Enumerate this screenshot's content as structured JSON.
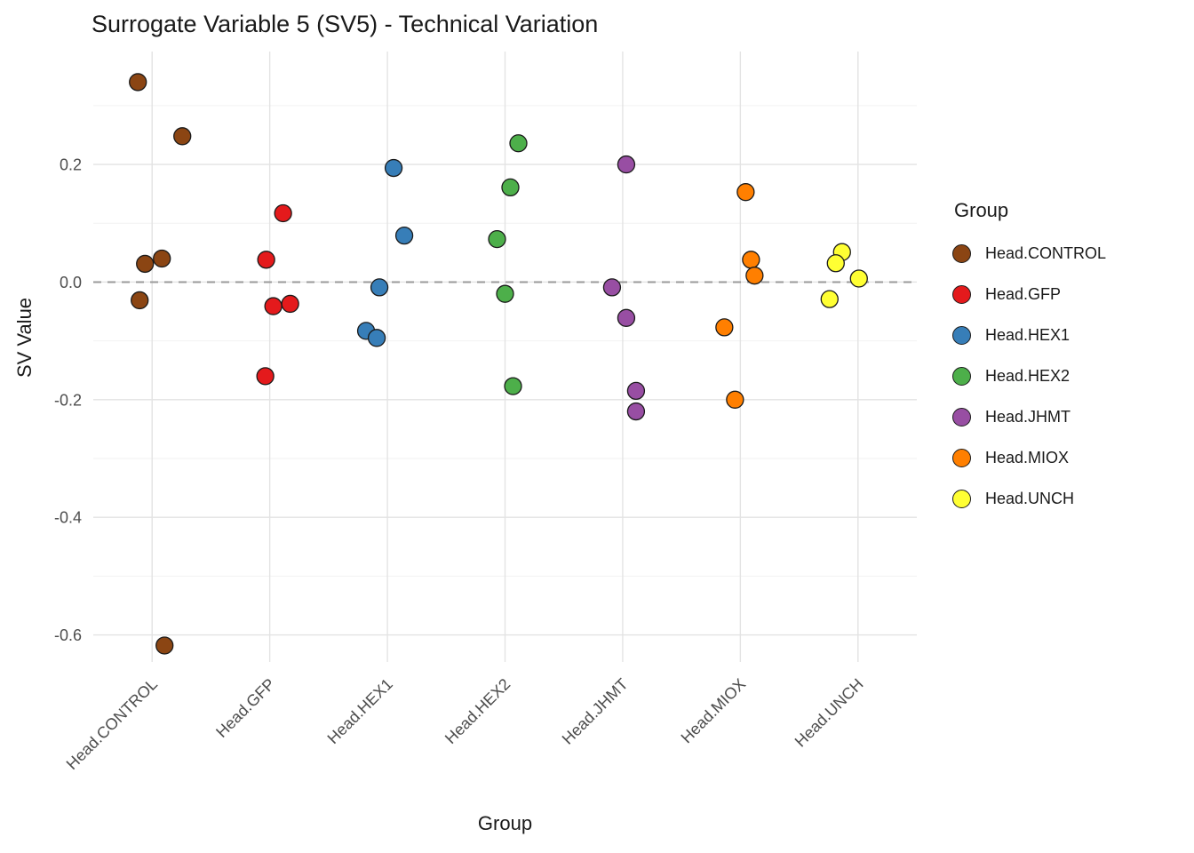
{
  "title": "Surrogate Variable 5 (SV5) - Technical Variation",
  "x_axis_title": "Group",
  "y_axis_title": "SV Value",
  "legend": {
    "title": "Group"
  },
  "chart_data": {
    "type": "scatter",
    "title": "Surrogate Variable 5 (SV5) - Technical Variation",
    "xlabel": "Group",
    "ylabel": "SV Value",
    "grid": true,
    "legend_position": "right",
    "reference_line_y": 0.0,
    "reference_line_style": "dashed",
    "reference_line_color": "#9a9a9a",
    "ylim": [
      -0.646,
      0.392
    ],
    "y_ticks": [
      {
        "v": 0.2,
        "label": "0.2"
      },
      {
        "v": 0.0,
        "label": "0.0"
      },
      {
        "v": -0.2,
        "label": "-0.2"
      },
      {
        "v": -0.4,
        "label": "-0.4"
      },
      {
        "v": -0.6,
        "label": "-0.6"
      }
    ],
    "y_minor_ticks": [
      0.3,
      0.1,
      -0.1,
      -0.3,
      -0.5
    ],
    "categories": [
      "Head.CONTROL",
      "Head.GFP",
      "Head.HEX1",
      "Head.HEX2",
      "Head.JHMT",
      "Head.MIOX",
      "Head.UNCH"
    ],
    "point_radius": 9.5,
    "point_edge_color": "#1a1a1a",
    "grid_major_color": "#e3e3e3",
    "grid_minor_color": "#f2f2f2",
    "axis_text_color": "#4d4d4d",
    "series": [
      {
        "name": "Head.CONTROL",
        "color": "#8B4513",
        "points": [
          {
            "dx": -16,
            "y": 0.34
          },
          {
            "dx": 34,
            "y": 0.248
          },
          {
            "dx": 11,
            "y": 0.04
          },
          {
            "dx": -8,
            "y": 0.031
          },
          {
            "dx": -14,
            "y": -0.031
          },
          {
            "dx": 14,
            "y": -0.618
          }
        ]
      },
      {
        "name": "Head.GFP",
        "color": "#E41A1C",
        "points": [
          {
            "dx": 15,
            "y": 0.117
          },
          {
            "dx": -4,
            "y": 0.038
          },
          {
            "dx": 23,
            "y": -0.037
          },
          {
            "dx": 4,
            "y": -0.041
          },
          {
            "dx": -5,
            "y": -0.16
          }
        ]
      },
      {
        "name": "Head.HEX1",
        "color": "#377EB8",
        "points": [
          {
            "dx": 7,
            "y": 0.194
          },
          {
            "dx": 19,
            "y": 0.079
          },
          {
            "dx": -9,
            "y": -0.009
          },
          {
            "dx": -24,
            "y": -0.083
          },
          {
            "dx": -12,
            "y": -0.095
          }
        ]
      },
      {
        "name": "Head.HEX2",
        "color": "#4DAF4A",
        "points": [
          {
            "dx": 15,
            "y": 0.236
          },
          {
            "dx": 6,
            "y": 0.161
          },
          {
            "dx": -9,
            "y": 0.073
          },
          {
            "dx": 0,
            "y": -0.02
          },
          {
            "dx": 9,
            "y": -0.177
          }
        ]
      },
      {
        "name": "Head.JHMT",
        "color": "#984EA3",
        "points": [
          {
            "dx": 4,
            "y": 0.2
          },
          {
            "dx": -12,
            "y": -0.009
          },
          {
            "dx": 4,
            "y": -0.061
          },
          {
            "dx": 15,
            "y": -0.185
          },
          {
            "dx": 15,
            "y": -0.22
          }
        ]
      },
      {
        "name": "Head.MIOX",
        "color": "#FF7F00",
        "points": [
          {
            "dx": 6,
            "y": 0.153
          },
          {
            "dx": 12,
            "y": 0.038
          },
          {
            "dx": 16,
            "y": 0.011
          },
          {
            "dx": -18,
            "y": -0.077
          },
          {
            "dx": -6,
            "y": -0.2
          }
        ]
      },
      {
        "name": "Head.UNCH",
        "color": "#FFFF33",
        "points": [
          {
            "dx": -18,
            "y": 0.051
          },
          {
            "dx": -25,
            "y": 0.032
          },
          {
            "dx": 1,
            "y": 0.006
          },
          {
            "dx": -32,
            "y": -0.029
          }
        ]
      }
    ]
  }
}
